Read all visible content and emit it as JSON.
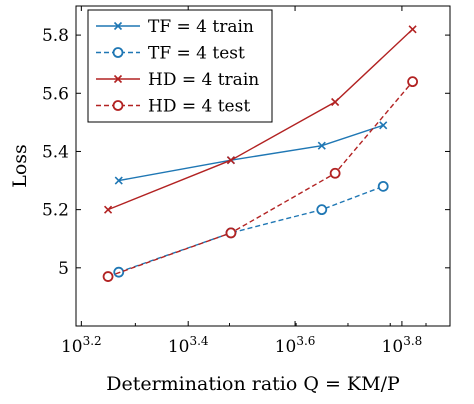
{
  "chart_data": {
    "type": "line",
    "xlabel": "Determination ratio Q = KM/P",
    "ylabel": "Loss",
    "x_scale": "log10",
    "xlim": [
      3.19,
      3.89
    ],
    "ylim": [
      4.8,
      5.9
    ],
    "x_ticks": [
      {
        "exp": 3.2,
        "base": "10",
        "sup": "3.2"
      },
      {
        "exp": 3.4,
        "base": "10",
        "sup": "3.4"
      },
      {
        "exp": 3.6,
        "base": "10",
        "sup": "3.6"
      },
      {
        "exp": 3.8,
        "base": "10",
        "sup": "3.8"
      }
    ],
    "y_ticks": [
      {
        "value": 5.0,
        "label": "5"
      },
      {
        "value": 5.2,
        "label": "5.2"
      },
      {
        "value": 5.4,
        "label": "5.4"
      },
      {
        "value": 5.6,
        "label": "5.6"
      },
      {
        "value": 5.8,
        "label": "5.8"
      }
    ],
    "grid": false,
    "legend_position": "top-left",
    "series": [
      {
        "name": "TF = 4 train",
        "color": "#1f77b4",
        "marker": "x",
        "dash": "solid",
        "x_exp": [
          3.27,
          3.48,
          3.65,
          3.765
        ],
        "values": [
          5.3,
          5.37,
          5.42,
          5.49
        ]
      },
      {
        "name": "TF = 4 test",
        "color": "#1f77b4",
        "marker": "o",
        "dash": "dashed",
        "x_exp": [
          3.27,
          3.48,
          3.65,
          3.765
        ],
        "values": [
          4.985,
          5.12,
          5.2,
          5.28
        ]
      },
      {
        "name": "HD = 4 train",
        "color": "#b22222",
        "marker": "x",
        "dash": "solid",
        "x_exp": [
          3.25,
          3.48,
          3.675,
          3.82
        ],
        "values": [
          5.2,
          5.37,
          5.57,
          5.82
        ]
      },
      {
        "name": "HD = 4 test",
        "color": "#b22222",
        "marker": "o",
        "dash": "dashed",
        "x_exp": [
          3.25,
          3.48,
          3.675,
          3.82
        ],
        "values": [
          4.97,
          5.12,
          5.325,
          5.64
        ]
      }
    ]
  }
}
